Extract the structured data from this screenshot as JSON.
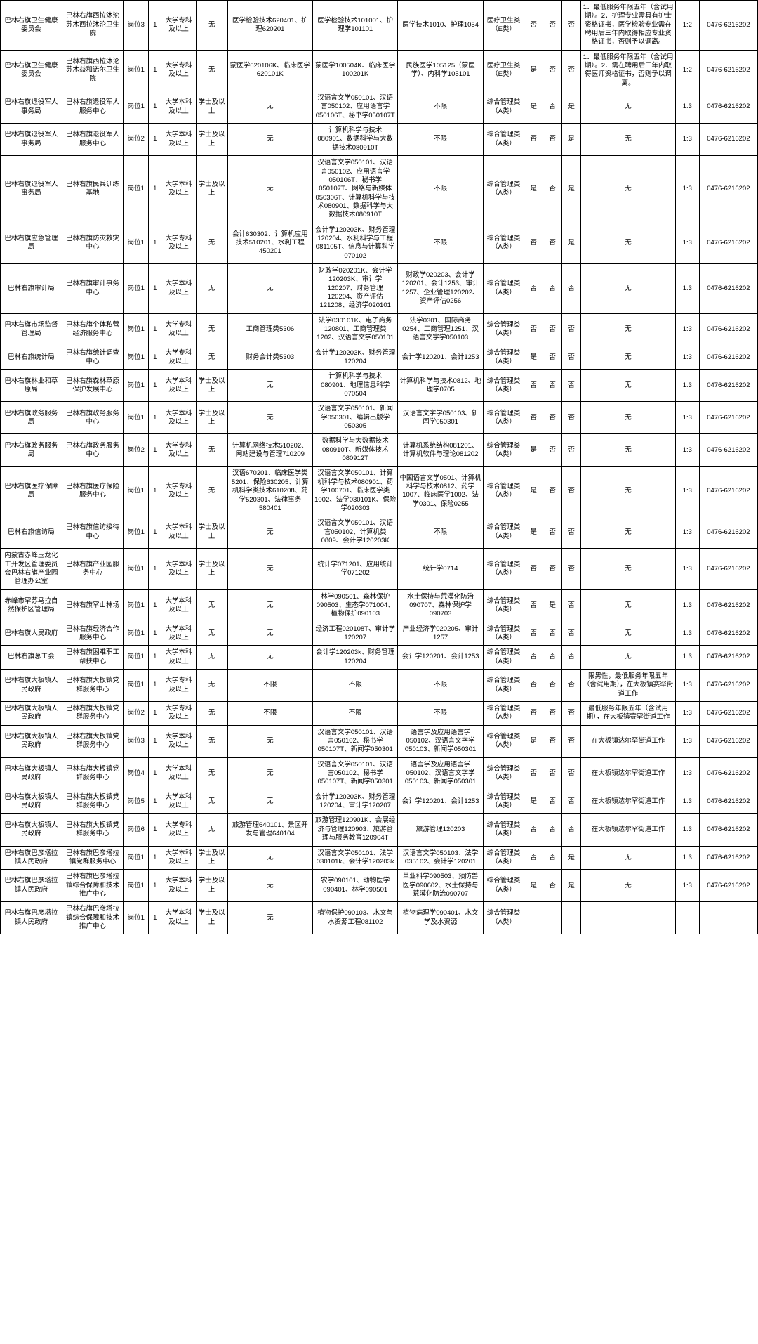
{
  "table": {
    "rows": [
      {
        "c": [
          "巴林右旗卫生健康委员会",
          "巴林右旗西拉沐沦苏木西拉沐沦卫生院",
          "岗位3",
          "1",
          "大学专科及以上",
          "无",
          "医学检验技术620401、护理620201",
          "医学检验技术101001、护理学101101",
          "医学技术1010、护理1054",
          "医疗卫生类（E类）",
          "否",
          "否",
          "否",
          "1．最低服务年限五年（含试用期）。2．护理专业需具有护士资格证书，医学检验专业需在聘用后三年内取得相应专业资格证书，否则予以调离。",
          "1:2",
          "0476-6216202"
        ]
      },
      {
        "c": [
          "巴林右旗卫生健康委员会",
          "巴林右旗西拉沐沦苏木益和诺尔卫生院",
          "岗位1",
          "1",
          "大学专科及以上",
          "无",
          "蒙医学620106K、临床医学620101K",
          "蒙医学100504K、临床医学100201K",
          "民族医学105125（蒙医学）、内科学105101",
          "医疗卫生类（E类）",
          "是",
          "否",
          "否",
          "1．最低服务年限五年（含试用期）。2．需在聘用后三年内取得医师资格证书，否则予以调离。",
          "1:2",
          "0476-6216202"
        ]
      },
      {
        "c": [
          "巴林右旗退役军人事务局",
          "巴林右旗退役军人服务中心",
          "岗位1",
          "1",
          "大学本科及以上",
          "学士及以上",
          "无",
          "汉语言文学050101、汉语言050102、应用语言学050106T、秘书学050107T",
          "不限",
          "综合管理类（A类）",
          "是",
          "否",
          "是",
          "无",
          "1:3",
          "0476-6216202"
        ]
      },
      {
        "c": [
          "巴林右旗退役军人事务局",
          "巴林右旗退役军人服务中心",
          "岗位2",
          "1",
          "大学本科及以上",
          "学士及以上",
          "无",
          "计算机科学与技术080901、数据科学与大数据技术080910T",
          "不限",
          "综合管理类（A类）",
          "否",
          "否",
          "是",
          "无",
          "1:3",
          "0476-6216202"
        ]
      },
      {
        "c": [
          "巴林右旗退役军人事务局",
          "巴林右旗民兵训练基地",
          "岗位1",
          "1",
          "大学本科及以上",
          "学士及以上",
          "无",
          "汉语言文学050101、汉语言050102、应用语言学050106T、秘书学050107T、网络与新媒体050306T、计算机科学与技术080901、数据科学与大数据技术080910T",
          "不限",
          "综合管理类（A类）",
          "是",
          "否",
          "是",
          "无",
          "1:3",
          "0476-6216202"
        ]
      },
      {
        "c": [
          "巴林右旗应急管理局",
          "巴林右旗防灾救灾中心",
          "岗位1",
          "1",
          "大学专科及以上",
          "无",
          "会计630302、计算机应用技术510201、水利工程450201",
          "会计学120203K、财务管理120204、水利科学与工程081105T、信息与计算科学070102",
          "不限",
          "综合管理类（A类）",
          "否",
          "否",
          "是",
          "无",
          "1:3",
          "0476-6216202"
        ]
      },
      {
        "c": [
          "巴林右旗审计局",
          "巴林右旗审计事务中心",
          "岗位1",
          "1",
          "大学本科及以上",
          "无",
          "无",
          "财政学020201K、会计学120203K、审计学120207、财务管理120204、资产评估121208、经济学020101",
          "财政学020203、会计学120201、会计1253、审计1257、企业管理120202、资产评估0256",
          "综合管理类（A类）",
          "否",
          "否",
          "否",
          "无",
          "1:3",
          "0476-6216202"
        ]
      },
      {
        "c": [
          "巴林右旗市场监督管理局",
          "巴林右旗个体私营经济服务中心",
          "岗位1",
          "1",
          "大学专科及以上",
          "无",
          "工商管理类5306",
          "法学030101K、电子商务120801、工商管理类1202、汉语言文学050101",
          "法学0301、国际商务0254、工商管理1251、汉语言文字学050103",
          "综合管理类（A类）",
          "否",
          "否",
          "否",
          "无",
          "1:3",
          "0476-6216202"
        ]
      },
      {
        "c": [
          "巴林右旗统计局",
          "巴林右旗统计调查中心",
          "岗位1",
          "1",
          "大学专科及以上",
          "无",
          "财务会计类5303",
          "会计学120203K、财务管理120204",
          "会计学120201、会计1253",
          "综合管理类（A类）",
          "是",
          "否",
          "否",
          "无",
          "1:3",
          "0476-6216202"
        ]
      },
      {
        "c": [
          "巴林右旗林业和草原局",
          "巴林右旗森林草原保护发展中心",
          "岗位1",
          "1",
          "大学本科及以上",
          "学士及以上",
          "无",
          "计算机科学与技术080901、地理信息科学070504",
          "计算机科学与技术0812、地理学0705",
          "综合管理类（A类）",
          "否",
          "否",
          "否",
          "无",
          "1:3",
          "0476-6216202"
        ]
      },
      {
        "c": [
          "巴林右旗政务服务局",
          "巴林右旗政务服务中心",
          "岗位1",
          "1",
          "大学本科及以上",
          "学士及以上",
          "无",
          "汉语言文学050101、新闻学050301、编辑出版学050305",
          "汉语言文字学050103、新闻学050301",
          "综合管理类（A类）",
          "否",
          "否",
          "否",
          "无",
          "1:3",
          "0476-6216202"
        ]
      },
      {
        "c": [
          "巴林右旗政务服务局",
          "巴林右旗政务服务中心",
          "岗位2",
          "1",
          "大学专科及以上",
          "无",
          "计算机网络技术510202、网站建设与管理710209",
          "数据科学与大数据技术080910T、新媒体技术080912T",
          "计算机系统结构081201、计算机软件与理论081202",
          "综合管理类（A类）",
          "是",
          "否",
          "否",
          "无",
          "1:3",
          "0476-6216202"
        ]
      },
      {
        "c": [
          "巴林右旗医疗保障局",
          "巴林右旗医疗保险服务中心",
          "岗位1",
          "1",
          "大学专科及以上",
          "无",
          "汉语670201、临床医学类5201、保险630205、计算机科学类技术610208、药学520301、法律事务580401",
          "汉语言文学050101、计算机科学与技术080901、药学100701、临床医学类1002、法学030101K、保险学020303",
          "中国语言文学0501、计算机科学与技术0812、药学1007、临床医学1002、法学0301、保险0255",
          "综合管理类（A类）",
          "是",
          "否",
          "否",
          "无",
          "1:3",
          "0476-6216202"
        ]
      },
      {
        "c": [
          "巴林右旗信访局",
          "巴林右旗信访接待中心",
          "岗位1",
          "1",
          "大学本科及以上",
          "学士及以上",
          "无",
          "汉语言文学050101、汉语言050102、计算机类0809、会计学120203K",
          "不限",
          "综合管理类（A类）",
          "是",
          "否",
          "否",
          "无",
          "1:3",
          "0476-6216202"
        ]
      },
      {
        "c": [
          "内蒙古赤峰玉龙化工开发区管理委员会巴林右旗产业园管理办公室",
          "巴林右旗产业园服务中心",
          "岗位1",
          "1",
          "大学本科及以上",
          "学士及以上",
          "无",
          "统计学071201、应用统计学071202",
          "统计学0714",
          "综合管理类（A类）",
          "否",
          "否",
          "否",
          "无",
          "1:3",
          "0476-6216202"
        ]
      },
      {
        "c": [
          "赤峰市罕苏马拉自然保护区管理局",
          "巴林右旗罕山林场",
          "岗位1",
          "1",
          "大学本科及以上",
          "无",
          "无",
          "林学090501、森林保护090503、生态学071004、植物保护090103",
          "水土保持与荒漠化防治090707、森林保护学090703",
          "综合管理类（A类）",
          "否",
          "是",
          "否",
          "无",
          "1:3",
          "0476-6216202"
        ]
      },
      {
        "c": [
          "巴林右旗人民政府",
          "巴林右旗经济合作服务中心",
          "岗位1",
          "1",
          "大学本科及以上",
          "无",
          "无",
          "经济工程020108T、审计学120207",
          "产业经济学020205、审计1257",
          "综合管理类（A类）",
          "否",
          "否",
          "否",
          "无",
          "1:3",
          "0476-6216202"
        ]
      },
      {
        "c": [
          "巴林右旗总工会",
          "巴林右旗困难职工帮扶中心",
          "岗位1",
          "1",
          "大学本科及以上",
          "无",
          "无",
          "会计学120203k、财务管理120204",
          "会计学120201、会计1253",
          "综合管理类（A类）",
          "否",
          "否",
          "否",
          "无",
          "1:3",
          "0476-6216202"
        ]
      },
      {
        "c": [
          "巴林右旗大板镇人民政府",
          "巴林右旗大板镇党群服务中心",
          "岗位1",
          "1",
          "大学专科及以上",
          "无",
          "不限",
          "不限",
          "不限",
          "综合管理类（A类）",
          "否",
          "否",
          "否",
          "限男性，最低服务年限五年（含试用期），在大板镇赛罕街道工作",
          "1:3",
          "0476-6216202"
        ]
      },
      {
        "c": [
          "巴林右旗大板镇人民政府",
          "巴林右旗大板镇党群服务中心",
          "岗位2",
          "1",
          "大学专科及以上",
          "无",
          "不限",
          "不限",
          "不限",
          "综合管理类（A类）",
          "否",
          "否",
          "否",
          "最低服务年限五年（含试用期），在大板镇赛罕街道工作",
          "1:3",
          "0476-6216202"
        ]
      },
      {
        "c": [
          "巴林右旗大板镇人民政府",
          "巴林右旗大板镇党群服务中心",
          "岗位3",
          "1",
          "大学本科及以上",
          "无",
          "无",
          "汉语言文学050101、汉语言050102、秘书学050107T、新闻学050301",
          "语言学及应用语言学050102、汉语言文字学050103、新闻学050301",
          "综合管理类（A类）",
          "是",
          "否",
          "否",
          "在大板镇达尔罕街道工作",
          "1:3",
          "0476-6216202"
        ]
      },
      {
        "c": [
          "巴林右旗大板镇人民政府",
          "巴林右旗大板镇党群服务中心",
          "岗位4",
          "1",
          "大学本科及以上",
          "无",
          "无",
          "汉语言文学050101、汉语言050102、秘书学050107T、新闻学050301",
          "语言学及应用语言学050102、汉语言文字学050103、新闻学050301",
          "综合管理类（A类）",
          "否",
          "否",
          "否",
          "在大板镇达尔罕街道工作",
          "1:3",
          "0476-6216202"
        ]
      },
      {
        "c": [
          "巴林右旗大板镇人民政府",
          "巴林右旗大板镇党群服务中心",
          "岗位5",
          "1",
          "大学本科及以上",
          "无",
          "无",
          "会计学120203K、财务管理120204、审计学120207",
          "会计学120201、会计1253",
          "综合管理类（A类）",
          "是",
          "否",
          "否",
          "在大板镇达尔罕街道工作",
          "1:3",
          "0476-6216202"
        ]
      },
      {
        "c": [
          "巴林右旗大板镇人民政府",
          "巴林右旗大板镇党群服务中心",
          "岗位6",
          "1",
          "大学专科及以上",
          "无",
          "旅游管理640101、景区开发与管理640104",
          "旅游管理120901K、会展经济与管理120903、旅游管理与服务教育120904T",
          "旅游管理120203",
          "综合管理类（A类）",
          "否",
          "否",
          "否",
          "在大板镇达尔罕街道工作",
          "1:3",
          "0476-6216202"
        ]
      },
      {
        "c": [
          "巴林右旗巴彦塔拉镇人民政府",
          "巴林右旗巴彦塔拉镇党群服务中心",
          "岗位1",
          "1",
          "大学本科及以上",
          "学士及以上",
          "无",
          "汉语言文学050101、法学030101k、会计学120203k",
          "汉语言文学050103、法学035102、会计学120201",
          "综合管理类（A类）",
          "否",
          "否",
          "是",
          "无",
          "1:3",
          "0476-6216202"
        ]
      },
      {
        "c": [
          "巴林右旗巴彦塔拉镇人民政府",
          "巴林右旗巴彦塔拉镇综合保障和技术推广中心",
          "岗位1",
          "1",
          "大学本科及以上",
          "学士及以上",
          "无",
          "农学090101、动物医学090401、林学090501",
          "草业科学090503、预防兽医学090602、水土保持与荒漠化防治090707",
          "综合管理类（A类）",
          "是",
          "否",
          "是",
          "无",
          "1:3",
          "0476-6216202"
        ]
      },
      {
        "c": [
          "巴林右旗巴彦塔拉镇人民政府",
          "巴林右旗巴彦塔拉镇综合保障和技术推广中心",
          "岗位1",
          "1",
          "大学本科及以上",
          "学士及以上",
          "无",
          "植物保护090103、水文与水资源工程081102",
          "植物病理学090401、水文学及水资源",
          "综合管理类（A类）",
          "",
          "",
          "",
          "",
          "",
          ""
        ]
      }
    ]
  }
}
